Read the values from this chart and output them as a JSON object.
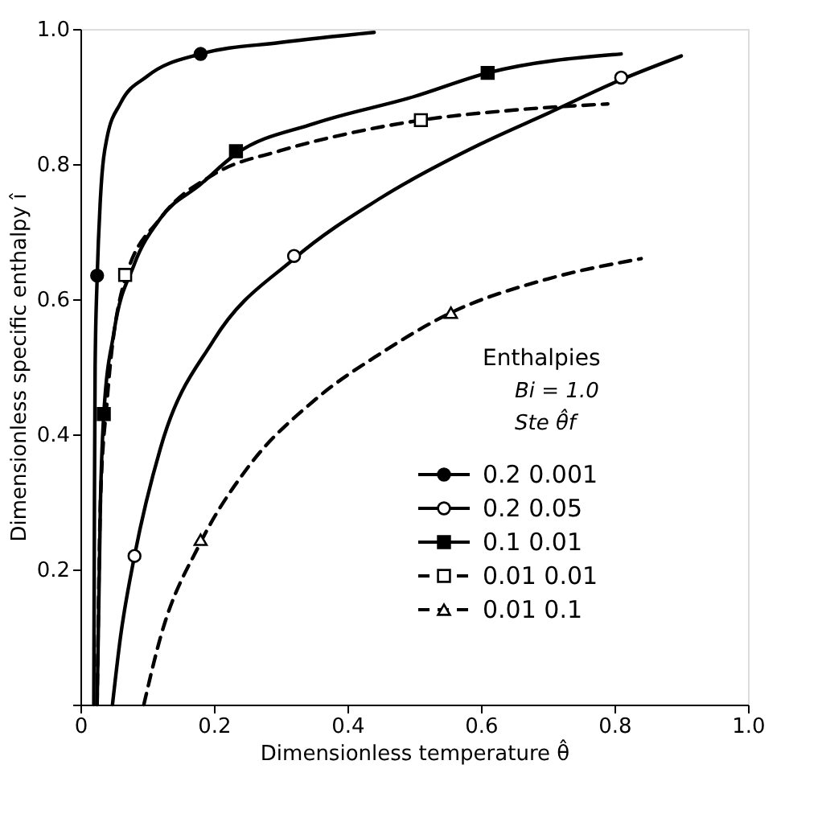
{
  "chart_data": {
    "type": "line",
    "xlabel": "Dimensionless temperature θ̂",
    "ylabel": "Dimensionless specific enthalpy î",
    "legend_title": "Enthalpies\nBi = 1.0\nSte θ̂f",
    "xlim": [
      0,
      1.0
    ],
    "ylim": [
      0,
      1.0
    ],
    "xticks": [
      0,
      0.2,
      0.4,
      0.6,
      0.8,
      {
        "value": 1.0,
        "label": "1.0"
      }
    ],
    "yticks": [
      {
        "value": 0,
        "label": null
      },
      0.2,
      0.4,
      0.6,
      0.8,
      {
        "value": 1.0,
        "label": "1.0"
      }
    ],
    "grid": false,
    "legend": "bottom right",
    "series": [
      {
        "name": "0.2 0.001",
        "color": "#000000",
        "line_style": "solid",
        "x": [
          0.02,
          0.021,
          0.022,
          0.025,
          0.03,
          0.04,
          0.06,
          0.1,
          0.18,
          0.3,
          0.44
        ],
        "values": [
          0,
          0.3,
          0.5,
          0.63,
          0.75,
          0.84,
          0.89,
          0.93,
          0.963,
          0.98,
          0.995
        ]
      },
      {
        "name": "0.2 0.05",
        "color": "#000000",
        "line_style": "solid",
        "x": [
          0.048,
          0.06,
          0.081,
          0.12,
          0.2,
          0.32,
          0.45,
          0.6,
          0.7,
          0.81,
          0.9
        ],
        "values": [
          0,
          0.1,
          0.22,
          0.38,
          0.54,
          0.66,
          0.75,
          0.83,
          0.875,
          0.925,
          0.96
        ]
      },
      {
        "name": "0.1 0.01",
        "color": "#000000",
        "line_style": "solid",
        "x": [
          0.025,
          0.03,
          0.035,
          0.05,
          0.08,
          0.12,
          0.18,
          0.233,
          0.35,
          0.5,
          0.61,
          0.81
        ],
        "values": [
          0,
          0.3,
          0.43,
          0.55,
          0.65,
          0.72,
          0.77,
          0.815,
          0.86,
          0.9,
          0.935,
          0.963
        ]
      },
      {
        "name": "0.01 0.01",
        "color": "#000000",
        "line_style": "dashed",
        "x": [
          0.025,
          0.03,
          0.04,
          0.067,
          0.12,
          0.2,
          0.3,
          0.4,
          0.51,
          0.65,
          0.79
        ],
        "values": [
          0,
          0.3,
          0.45,
          0.63,
          0.72,
          0.785,
          0.82,
          0.845,
          0.865,
          0.88,
          0.889
        ]
      },
      {
        "name": "0.01 0.1",
        "color": "#000000",
        "line_style": "dashed",
        "x": [
          0.095,
          0.12,
          0.18,
          0.25,
          0.35,
          0.45,
          0.555,
          0.7,
          0.84
        ],
        "values": [
          0,
          0.1,
          0.24,
          0.35,
          0.45,
          0.52,
          0.58,
          0.63,
          0.66
        ]
      },
      {
        "type": "scatter",
        "marker": "circle",
        "color": "#000000",
        "x": [
          0.025,
          0.18
        ],
        "values": [
          0.635,
          0.963
        ]
      },
      {
        "type": "scatter",
        "marker": "circle",
        "color": "#ffffff",
        "x": [
          0.081,
          0.32,
          0.81
        ],
        "values": [
          0.22,
          0.664,
          0.928
        ]
      },
      {
        "type": "scatter",
        "marker": "square",
        "color": "#000000",
        "x": [
          0.035,
          0.233,
          0.61
        ],
        "values": [
          0.43,
          0.819,
          0.935
        ]
      },
      {
        "type": "scatter",
        "marker": "square",
        "color": "#ffffff",
        "x": [
          0.067,
          0.51
        ],
        "values": [
          0.636,
          0.865
        ]
      },
      {
        "type": "scatter",
        "marker": "triangle",
        "color": "#ffffff",
        "x": [
          0.18,
          0.555
        ],
        "values": [
          0.244,
          0.58
        ]
      }
    ]
  }
}
